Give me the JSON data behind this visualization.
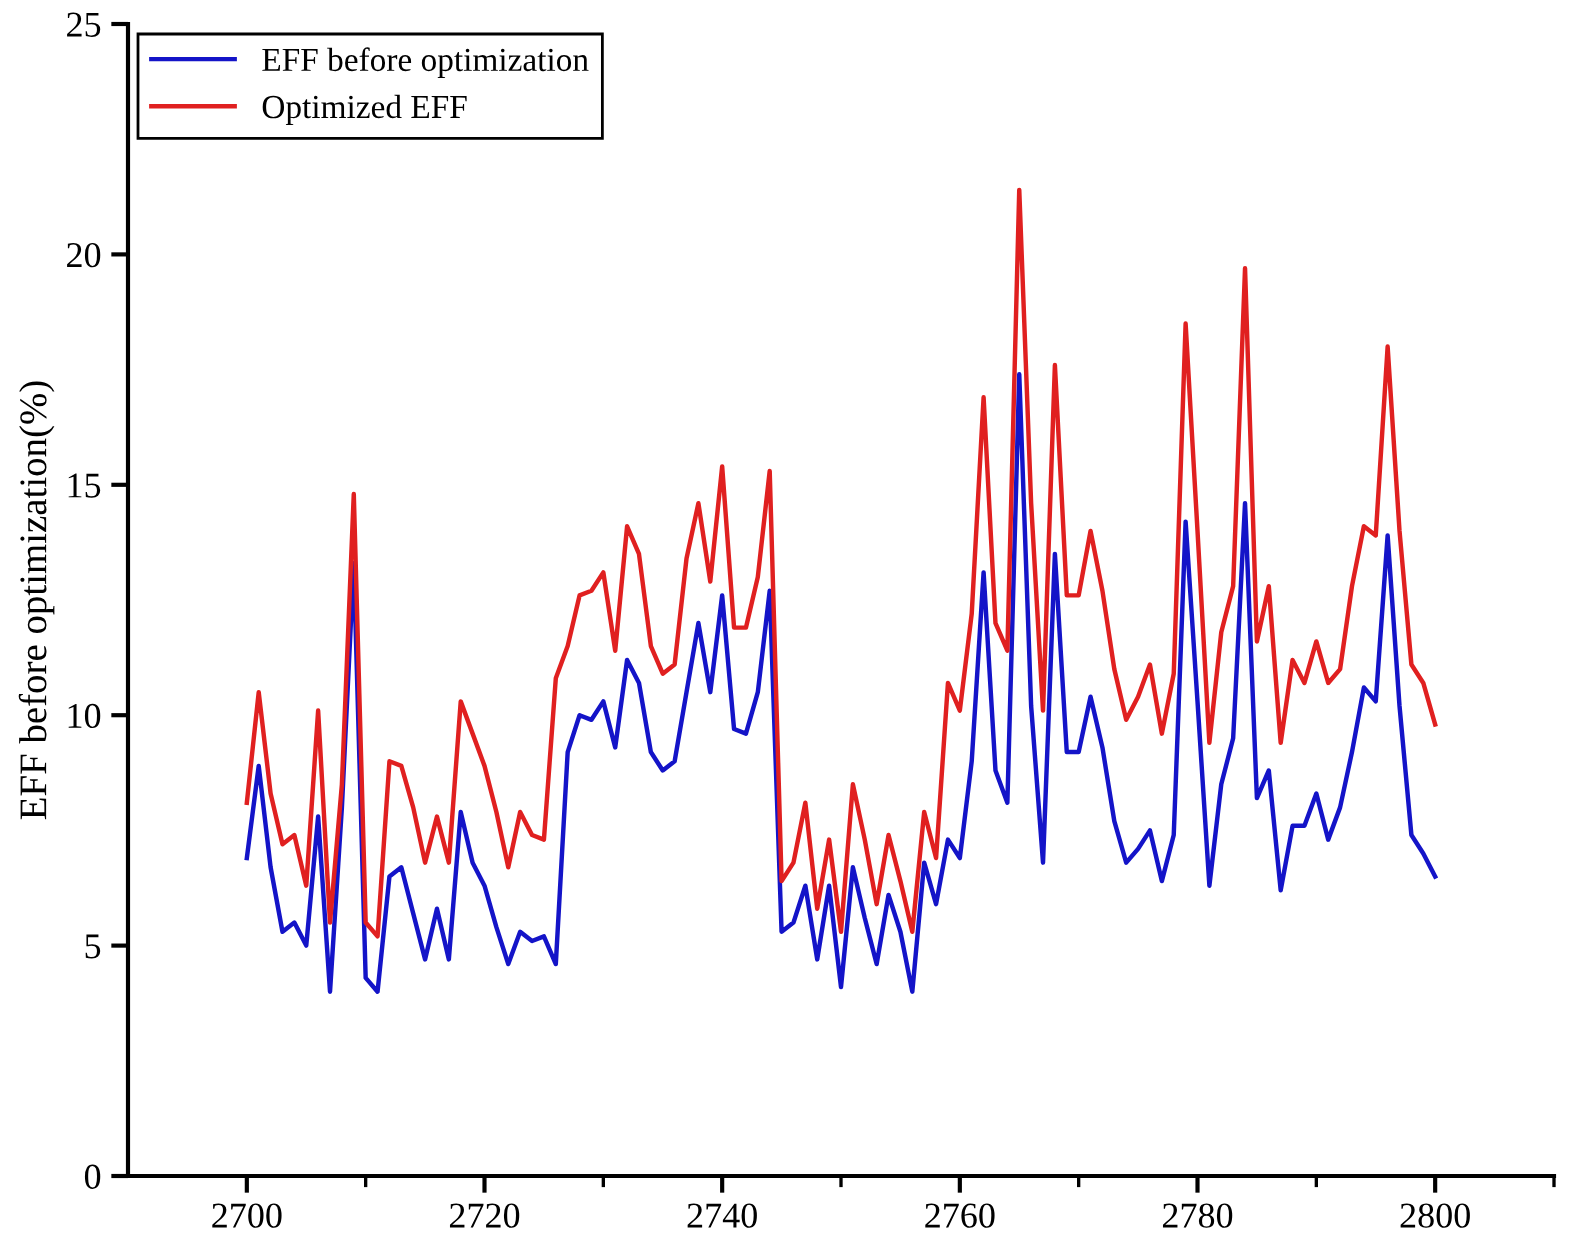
{
  "chart_data": {
    "type": "line",
    "ylabel": "EFF before optimization(%)",
    "x": [
      2700,
      2701,
      2702,
      2703,
      2704,
      2705,
      2706,
      2707,
      2708,
      2709,
      2710,
      2711,
      2712,
      2713,
      2714,
      2715,
      2716,
      2717,
      2718,
      2719,
      2720,
      2721,
      2722,
      2723,
      2724,
      2725,
      2726,
      2727,
      2728,
      2729,
      2730,
      2731,
      2732,
      2733,
      2734,
      2735,
      2736,
      2737,
      2738,
      2739,
      2740,
      2741,
      2742,
      2743,
      2744,
      2745,
      2746,
      2747,
      2748,
      2749,
      2750,
      2751,
      2752,
      2753,
      2754,
      2755,
      2756,
      2757,
      2758,
      2759,
      2760,
      2761,
      2762,
      2763,
      2764,
      2765,
      2766,
      2767,
      2768,
      2769,
      2770,
      2771,
      2772,
      2773,
      2774,
      2775,
      2776,
      2777,
      2778,
      2779,
      2780,
      2781,
      2782,
      2783,
      2784,
      2785,
      2786,
      2787,
      2788,
      2789,
      2790,
      2791,
      2792,
      2793,
      2794,
      2795,
      2796,
      2797,
      2798,
      2799,
      2800
    ],
    "series": [
      {
        "name": "EFF before optimization",
        "color": "#1414c8",
        "values": [
          6.9,
          8.9,
          6.7,
          5.3,
          5.5,
          5.0,
          7.8,
          4.0,
          8.0,
          13.3,
          4.3,
          4.0,
          6.5,
          6.7,
          5.7,
          4.7,
          5.8,
          4.7,
          7.9,
          6.8,
          6.3,
          5.4,
          4.6,
          5.3,
          5.1,
          5.2,
          4.6,
          9.2,
          10.0,
          9.9,
          10.3,
          9.3,
          11.2,
          10.7,
          9.2,
          8.8,
          9.0,
          10.5,
          12.0,
          10.5,
          12.6,
          9.7,
          9.6,
          10.5,
          12.7,
          5.3,
          5.5,
          6.3,
          4.7,
          6.3,
          4.1,
          6.7,
          5.6,
          4.6,
          6.1,
          5.3,
          4.0,
          6.8,
          5.9,
          7.3,
          6.9,
          9.0,
          13.1,
          8.8,
          8.1,
          17.4,
          10.2,
          6.8,
          13.5,
          9.2,
          9.2,
          10.4,
          9.3,
          7.7,
          6.8,
          7.1,
          7.5,
          6.4,
          7.4,
          14.2,
          10.3,
          6.3,
          8.5,
          9.5,
          14.6,
          8.2,
          8.8,
          6.2,
          7.6,
          7.6,
          8.3,
          7.3,
          8.0,
          9.2,
          10.6,
          10.3,
          13.9,
          10.2,
          7.4,
          7.0,
          6.5
        ]
      },
      {
        "name": "Optimized EFF",
        "color": "#e02020",
        "values": [
          8.1,
          10.5,
          8.3,
          7.2,
          7.4,
          6.3,
          10.1,
          5.5,
          8.5,
          14.8,
          5.5,
          5.2,
          9.0,
          8.9,
          8.0,
          6.8,
          7.8,
          6.8,
          10.3,
          9.6,
          8.9,
          7.9,
          6.7,
          7.9,
          7.4,
          7.3,
          10.8,
          11.5,
          12.6,
          12.7,
          13.1,
          11.4,
          14.1,
          13.5,
          11.5,
          10.9,
          11.1,
          13.4,
          14.6,
          12.9,
          15.4,
          11.9,
          11.9,
          13.0,
          15.3,
          6.4,
          6.8,
          8.1,
          5.8,
          7.3,
          5.3,
          8.5,
          7.3,
          5.9,
          7.4,
          6.4,
          5.3,
          7.9,
          6.9,
          10.7,
          10.1,
          12.2,
          16.9,
          12.0,
          11.4,
          21.4,
          14.6,
          10.1,
          17.6,
          12.6,
          12.6,
          14.0,
          12.7,
          11.0,
          9.9,
          10.4,
          11.1,
          9.6,
          10.9,
          18.5,
          14.0,
          9.4,
          11.8,
          12.8,
          19.7,
          11.6,
          12.8,
          9.4,
          11.2,
          10.7,
          11.6,
          10.7,
          11.0,
          12.8,
          14.1,
          13.9,
          18.0,
          14.0,
          11.1,
          10.7,
          9.8
        ]
      }
    ],
    "xlim": [
      2690,
      2810
    ],
    "xticks": [
      2700,
      {
        "value": 2710,
        "label": null
      },
      2720,
      {
        "value": 2730,
        "label": null
      },
      2740,
      {
        "value": 2750,
        "label": null
      },
      2760,
      {
        "value": 2770,
        "label": null
      },
      2780,
      {
        "value": 2790,
        "label": null
      },
      2800,
      {
        "value": 2810,
        "label": null
      }
    ],
    "ylim": [
      0,
      25
    ],
    "yticks": [
      0,
      5,
      10,
      15,
      20,
      25
    ],
    "grid": false,
    "legend": "top left",
    "marker": "none",
    "line_style": "solid"
  }
}
